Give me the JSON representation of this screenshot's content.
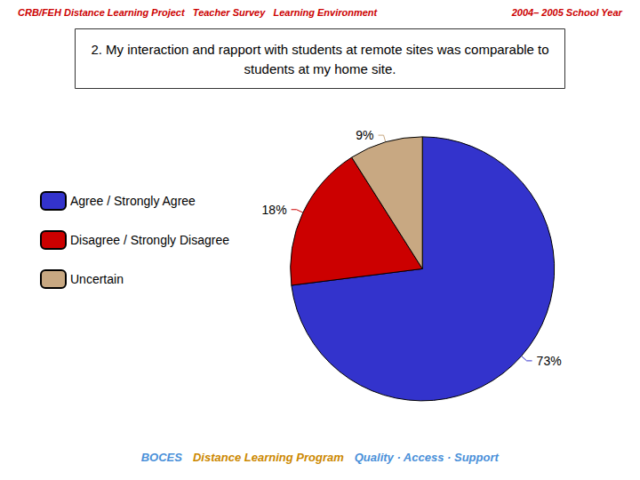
{
  "chart_data": {
    "type": "pie",
    "title": "2. My interaction and rapport with students at remote sites was comparable to\nstudents at my home site.",
    "annotations": [
      "CRB/FEH Distance Learning Project   Teacher Survey   Learning Environment",
      "2004– 2005 School Year",
      "BOCES",
      "Distance Learning Program",
      "Quality · Access · Support"
    ],
    "categories": [
      "Agree / Strongly Agree",
      "Disagree / Strongly Disagree",
      "Uncertain"
    ],
    "values": [
      73,
      18,
      9
    ],
    "value_labels": [
      "73%",
      "18%",
      "9%"
    ],
    "colors": [
      "#3333cc",
      "#cc0000",
      "#c8a882"
    ],
    "data_labels": true,
    "legend": "left"
  }
}
